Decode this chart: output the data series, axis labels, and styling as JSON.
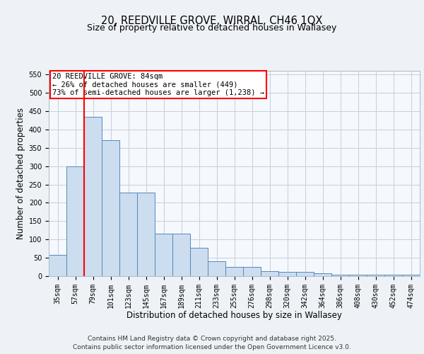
{
  "title_line1": "20, REEDVILLE GROVE, WIRRAL, CH46 1QX",
  "title_line2": "Size of property relative to detached houses in Wallasey",
  "xlabel": "Distribution of detached houses by size in Wallasey",
  "ylabel": "Number of detached properties",
  "categories": [
    "35sqm",
    "57sqm",
    "79sqm",
    "101sqm",
    "123sqm",
    "145sqm",
    "167sqm",
    "189sqm",
    "211sqm",
    "233sqm",
    "255sqm",
    "276sqm",
    "298sqm",
    "320sqm",
    "342sqm",
    "364sqm",
    "386sqm",
    "408sqm",
    "430sqm",
    "452sqm",
    "474sqm"
  ],
  "values": [
    58,
    300,
    435,
    370,
    228,
    228,
    115,
    115,
    77,
    40,
    25,
    25,
    14,
    11,
    11,
    8,
    4,
    4,
    3,
    3,
    3
  ],
  "bar_color": "#ccddef",
  "bar_edge_color": "#5588bb",
  "red_line_x": 1.5,
  "annotation_text_line1": "20 REEDVILLE GROVE: 84sqm",
  "annotation_text_line2": "← 26% of detached houses are smaller (449)",
  "annotation_text_line3": "73% of semi-detached houses are larger (1,238) →",
  "ylim": [
    0,
    560
  ],
  "yticks": [
    0,
    50,
    100,
    150,
    200,
    250,
    300,
    350,
    400,
    450,
    500,
    550
  ],
  "footer_line1": "Contains HM Land Registry data © Crown copyright and database right 2025.",
  "footer_line2": "Contains public sector information licensed under the Open Government Licence v3.0.",
  "bg_color": "#eef2f7",
  "plot_bg_color": "#f5f8fc",
  "grid_color": "#c5cfe0",
  "title_fontsize": 10.5,
  "subtitle_fontsize": 9,
  "axis_label_fontsize": 8.5,
  "tick_fontsize": 7,
  "footer_fontsize": 6.5,
  "ann_fontsize": 7.5
}
